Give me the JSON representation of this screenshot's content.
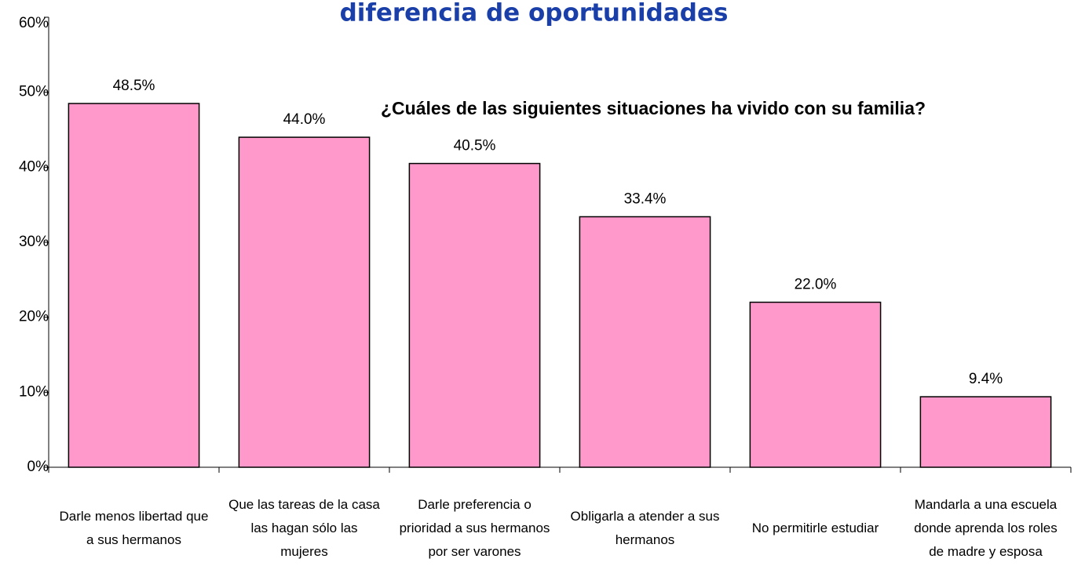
{
  "chart_data": {
    "type": "bar",
    "title": "diferencia de oportunidades",
    "subtitle": "¿Cuáles de las siguientes situaciones ha vivido con su familia?",
    "categories": [
      "Darle menos libertad que a sus hermanos",
      "Que las tareas de la casa las hagan sólo las mujeres",
      "Darle preferencia o prioridad a sus hermanos por ser varones",
      "Obligarla a atender a sus hermanos",
      "No permitirle estudiar",
      "Mandarla a una escuela donde aprenda los roles de madre y esposa"
    ],
    "values": [
      48.5,
      44.0,
      40.5,
      33.4,
      22.0,
      9.4
    ],
    "value_labels": [
      "48.5%",
      "44.0%",
      "40.5%",
      "33.4%",
      "22.0%",
      "9.4%"
    ],
    "color": "#ff99cc",
    "ylim": [
      0,
      60
    ],
    "yticks": [
      {
        "value": 0,
        "label": "0%"
      },
      {
        "value": 10,
        "label": "10%"
      },
      {
        "value": 20,
        "label": "20%"
      },
      {
        "value": 30,
        "label": "30%"
      },
      {
        "value": 40,
        "label": "40%"
      },
      {
        "value": 50,
        "label": "50%"
      },
      {
        "value": 60,
        "label": "60%"
      }
    ]
  }
}
